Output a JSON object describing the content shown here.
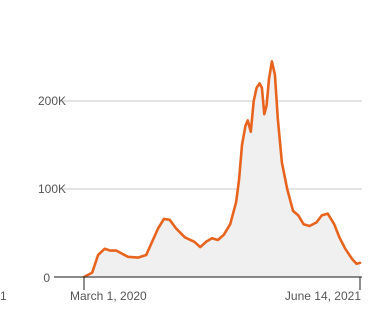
{
  "chart_data": {
    "type": "area",
    "title": "",
    "xlabel": "",
    "ylabel": "",
    "x_tick_labels": [
      "March 1, 2020",
      "June 14, 2021"
    ],
    "y_tick_labels": [
      "0",
      "100K",
      "200K"
    ],
    "y_ticks": [
      0,
      100000,
      200000
    ],
    "left_edge_fragment": "1",
    "ylim": [
      0,
      260000
    ],
    "grid": true,
    "legend": "none",
    "line_color": "#e8641e",
    "fill_color": "#f0f0f0",
    "series": [
      {
        "x": [
          "2020-03-01",
          "2020-03-15",
          "2020-03-25",
          "2020-04-05",
          "2020-04-15",
          "2020-04-25",
          "2020-05-15",
          "2020-06-01",
          "2020-06-15",
          "2020-06-25",
          "2020-07-05",
          "2020-07-15",
          "2020-07-25",
          "2020-08-05",
          "2020-08-20",
          "2020-09-05",
          "2020-09-15",
          "2020-09-25",
          "2020-10-05",
          "2020-10-15",
          "2020-10-25",
          "2020-11-05",
          "2020-11-15",
          "2020-11-20",
          "2020-11-25",
          "2020-12-01",
          "2020-12-05",
          "2020-12-10",
          "2020-12-15",
          "2020-12-20",
          "2020-12-25",
          "2020-12-29",
          "2021-01-02",
          "2021-01-06",
          "2021-01-10",
          "2021-01-15",
          "2021-01-20",
          "2021-01-25",
          "2021-02-01",
          "2021-02-10",
          "2021-02-20",
          "2021-03-01",
          "2021-03-10",
          "2021-03-20",
          "2021-04-01",
          "2021-04-10",
          "2021-04-20",
          "2021-05-01",
          "2021-05-10",
          "2021-05-20",
          "2021-06-01",
          "2021-06-08",
          "2021-06-14"
        ],
        "values": [
          0,
          5000,
          25000,
          32000,
          30000,
          30000,
          23000,
          22000,
          25000,
          40000,
          55000,
          66000,
          65000,
          55000,
          45000,
          40000,
          34000,
          40000,
          44000,
          42000,
          48000,
          60000,
          85000,
          110000,
          150000,
          172000,
          178000,
          165000,
          200000,
          215000,
          220000,
          215000,
          185000,
          195000,
          225000,
          245000,
          230000,
          180000,
          130000,
          100000,
          75000,
          70000,
          60000,
          58000,
          62000,
          70000,
          72000,
          60000,
          45000,
          32000,
          20000,
          15000,
          16000
        ]
      }
    ]
  }
}
